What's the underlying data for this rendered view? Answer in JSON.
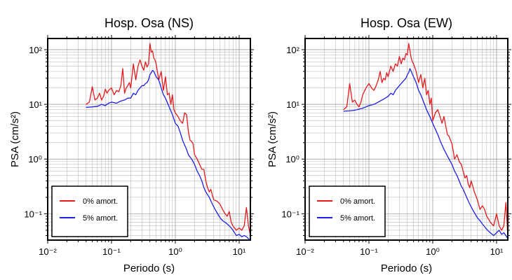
{
  "chart_data": [
    {
      "type": "line",
      "title": "Hosp. Osa (NS)",
      "xlabel": "Periodo (s)",
      "ylabel": "PSA (cm/s²)",
      "xscale": "log",
      "yscale": "log",
      "xlim": [
        0.01,
        15
      ],
      "ylim": [
        0.033,
        160
      ],
      "x_ticks": [
        "10⁻²",
        "10⁻¹",
        "10⁰",
        "10¹"
      ],
      "y_ticks": [
        "10⁻¹",
        "10⁰",
        "10¹",
        "10²"
      ],
      "grid": true,
      "legend": "bottom-left",
      "series": [
        {
          "name": "0% amort.",
          "color": "#e41a1c",
          "x": [
            0.04,
            0.045,
            0.05,
            0.055,
            0.06,
            0.065,
            0.07,
            0.075,
            0.08,
            0.085,
            0.09,
            0.1,
            0.11,
            0.12,
            0.13,
            0.14,
            0.15,
            0.16,
            0.17,
            0.18,
            0.19,
            0.2,
            0.22,
            0.24,
            0.26,
            0.28,
            0.3,
            0.32,
            0.34,
            0.36,
            0.38,
            0.4,
            0.42,
            0.44,
            0.46,
            0.48,
            0.5,
            0.55,
            0.6,
            0.65,
            0.7,
            0.75,
            0.8,
            0.85,
            0.9,
            0.95,
            1.0,
            1.1,
            1.2,
            1.3,
            1.4,
            1.5,
            1.6,
            1.7,
            1.8,
            1.9,
            2.0,
            2.2,
            2.4,
            2.6,
            2.8,
            3.0,
            3.2,
            3.4,
            3.6,
            3.8,
            4.0,
            4.5,
            5.0,
            5.5,
            6.0,
            6.5,
            7.0,
            7.5,
            8.0,
            9.0,
            10.0,
            11.0,
            12.0,
            13.0,
            14.0,
            15.0
          ],
          "y": [
            10,
            11,
            21,
            12,
            13,
            16,
            12,
            14,
            19,
            16,
            18,
            20,
            15,
            18,
            17,
            22,
            45,
            16,
            20,
            22,
            25,
            20,
            55,
            28,
            50,
            65,
            50,
            42,
            60,
            48,
            55,
            130,
            90,
            95,
            70,
            65,
            55,
            28,
            40,
            18,
            32,
            15,
            16,
            10,
            15,
            8,
            7,
            6,
            5,
            4.5,
            7,
            6.5,
            3.2,
            2.2,
            2.1,
            1.9,
            1.2,
            1.0,
            0.8,
            0.65,
            0.65,
            0.4,
            0.3,
            0.25,
            0.28,
            0.22,
            0.18,
            0.17,
            0.15,
            0.12,
            0.1,
            0.09,
            0.11,
            0.07,
            0.06,
            0.05,
            0.055,
            0.05,
            0.06,
            0.13,
            0.06,
            0.04
          ]
        },
        {
          "name": "5% amort.",
          "color": "#1f1fe8",
          "x": [
            0.04,
            0.05,
            0.06,
            0.07,
            0.08,
            0.09,
            0.1,
            0.12,
            0.14,
            0.16,
            0.18,
            0.2,
            0.22,
            0.24,
            0.26,
            0.28,
            0.3,
            0.32,
            0.34,
            0.36,
            0.38,
            0.4,
            0.42,
            0.44,
            0.46,
            0.5,
            0.55,
            0.6,
            0.65,
            0.7,
            0.8,
            0.9,
            1.0,
            1.1,
            1.2,
            1.3,
            1.4,
            1.5,
            1.6,
            1.8,
            2.0,
            2.2,
            2.4,
            2.6,
            2.8,
            3.0,
            3.4,
            3.8,
            4.2,
            4.6,
            5.0,
            5.5,
            6.0,
            6.5,
            7.0,
            7.5,
            8.0,
            9.0,
            10.0,
            11.0,
            12.0,
            13.0,
            14.0,
            15.0
          ],
          "y": [
            8.8,
            9.0,
            9.2,
            10,
            9.5,
            10.5,
            11,
            10.5,
            11.5,
            12,
            13,
            13,
            16,
            15,
            18,
            20,
            22,
            22,
            24,
            25,
            28,
            35,
            38,
            42,
            40,
            32,
            28,
            20,
            15,
            13,
            9,
            6.5,
            4.5,
            4.0,
            3.0,
            2.2,
            1.8,
            1.5,
            1.2,
            1.0,
            0.8,
            0.6,
            0.5,
            0.4,
            0.3,
            0.25,
            0.2,
            0.15,
            0.12,
            0.1,
            0.085,
            0.075,
            0.07,
            0.065,
            0.06,
            0.055,
            0.05,
            0.04,
            0.042,
            0.038,
            0.04,
            0.038,
            0.035,
            0.033
          ]
        }
      ]
    },
    {
      "type": "line",
      "title": "Hosp. Osa (EW)",
      "xlabel": "Periodo (s)",
      "ylabel": "PSA (cm/s²)",
      "xscale": "log",
      "yscale": "log",
      "xlim": [
        0.01,
        15
      ],
      "ylim": [
        0.033,
        160
      ],
      "x_ticks": [
        "10⁻²",
        "10⁻¹",
        "10⁰",
        "10¹"
      ],
      "y_ticks": [
        "10⁻¹",
        "10⁰",
        "10¹",
        "10²"
      ],
      "grid": true,
      "legend": "bottom-left",
      "series": [
        {
          "name": "0% amort.",
          "color": "#e41a1c",
          "x": [
            0.04,
            0.045,
            0.05,
            0.055,
            0.06,
            0.065,
            0.07,
            0.075,
            0.08,
            0.09,
            0.1,
            0.11,
            0.12,
            0.13,
            0.14,
            0.15,
            0.16,
            0.17,
            0.18,
            0.19,
            0.2,
            0.22,
            0.24,
            0.26,
            0.28,
            0.3,
            0.32,
            0.34,
            0.36,
            0.38,
            0.4,
            0.42,
            0.44,
            0.46,
            0.48,
            0.5,
            0.55,
            0.6,
            0.65,
            0.7,
            0.75,
            0.8,
            0.85,
            0.9,
            0.95,
            1.0,
            1.1,
            1.2,
            1.3,
            1.4,
            1.5,
            1.6,
            1.7,
            1.8,
            2.0,
            2.2,
            2.4,
            2.6,
            2.8,
            3.0,
            3.2,
            3.4,
            3.6,
            3.8,
            4.0,
            4.5,
            5.0,
            5.5,
            6.0,
            6.5,
            7.0,
            7.5,
            8.0,
            9.0,
            10.0,
            11.0,
            12.0,
            13.0,
            14.0,
            15.0
          ],
          "y": [
            8,
            9,
            24,
            11,
            12,
            10,
            9,
            11,
            15,
            20,
            24,
            20,
            18,
            22,
            28,
            40,
            25,
            30,
            28,
            38,
            32,
            50,
            40,
            55,
            50,
            75,
            55,
            70,
            65,
            85,
            80,
            130,
            95,
            70,
            60,
            55,
            40,
            25,
            35,
            20,
            30,
            15,
            18,
            10,
            13,
            5,
            7,
            8,
            6,
            4.5,
            6,
            4.0,
            2.8,
            2.6,
            1.9,
            1.0,
            1.2,
            0.9,
            0.8,
            0.6,
            0.45,
            0.5,
            0.35,
            0.3,
            0.4,
            0.25,
            0.18,
            0.12,
            0.14,
            0.12,
            0.09,
            0.08,
            0.07,
            0.06,
            0.1,
            0.06,
            0.05,
            0.06,
            0.16,
            0.04
          ]
        },
        {
          "name": "5% amort.",
          "color": "#1f1fe8",
          "x": [
            0.04,
            0.05,
            0.06,
            0.07,
            0.08,
            0.09,
            0.1,
            0.12,
            0.14,
            0.16,
            0.18,
            0.2,
            0.22,
            0.24,
            0.26,
            0.28,
            0.3,
            0.32,
            0.34,
            0.36,
            0.38,
            0.4,
            0.42,
            0.44,
            0.46,
            0.5,
            0.55,
            0.6,
            0.65,
            0.7,
            0.8,
            0.9,
            1.0,
            1.1,
            1.2,
            1.3,
            1.4,
            1.5,
            1.6,
            1.8,
            2.0,
            2.2,
            2.4,
            2.6,
            2.8,
            3.0,
            3.4,
            3.8,
            4.2,
            4.6,
            5.0,
            5.5,
            6.0,
            6.5,
            7.0,
            7.5,
            8.0,
            9.0,
            10.0,
            11.0,
            12.0,
            13.0,
            14.0,
            15.0
          ],
          "y": [
            7.5,
            7.6,
            7.8,
            8.2,
            8.5,
            9.0,
            9.5,
            10,
            11,
            12,
            13,
            14,
            16,
            15,
            18,
            20,
            22,
            24,
            26,
            28,
            30,
            35,
            38,
            45,
            40,
            32,
            25,
            18,
            15,
            12,
            8,
            6,
            4.5,
            3.5,
            2.8,
            2.2,
            1.8,
            1.5,
            1.3,
            1.0,
            0.8,
            0.6,
            0.5,
            0.4,
            0.32,
            0.28,
            0.2,
            0.15,
            0.12,
            0.1,
            0.085,
            0.075,
            0.065,
            0.058,
            0.052,
            0.048,
            0.045,
            0.04,
            0.045,
            0.05,
            0.042,
            0.045,
            0.04,
            0.035
          ]
        }
      ]
    }
  ]
}
